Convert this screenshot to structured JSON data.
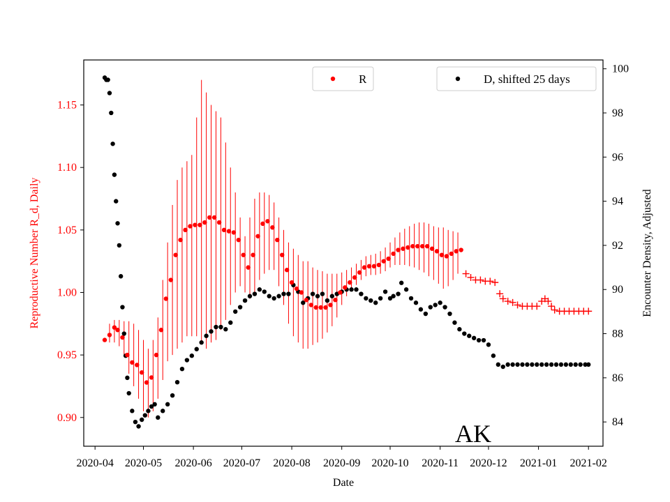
{
  "chart_data": {
    "type": "scatter",
    "state_label": "AK",
    "xlabel": "Date",
    "ylabel_left": "Reproductive Number R_d, Daily",
    "ylabel_right": "Encounter Density, Adjusted",
    "x_ticks": [
      "2020-04",
      "2020-05",
      "2020-06",
      "2020-07",
      "2020-08",
      "2020-09",
      "2020-10",
      "2020-11",
      "2020-12",
      "2021-01",
      "2021-02"
    ],
    "y_left_ticks": [
      "0.90",
      "0.95",
      "1.00",
      "1.05",
      "1.10",
      "1.15"
    ],
    "y_right_ticks": [
      "84",
      "86",
      "88",
      "90",
      "92",
      "94",
      "96",
      "98",
      "100"
    ],
    "xlim": [
      "2020-03-25",
      "2021-02-10"
    ],
    "ylim_left": [
      0.877,
      1.186
    ],
    "ylim_right": [
      82.9,
      100.4
    ],
    "grid": false,
    "colors": {
      "r_series": "#ff0000",
      "d_series": "#000000",
      "axis_left": "#ff0000"
    },
    "legend_r": {
      "label": "R",
      "placement": "top-center"
    },
    "legend_d": {
      "label": "D, shifted 25 days",
      "placement": "top-right"
    },
    "r_points": [
      [
        "2020-04-07",
        0.962
      ],
      [
        "2020-04-10",
        0.966
      ],
      [
        "2020-04-13",
        0.972
      ],
      [
        "2020-04-15",
        0.97
      ],
      [
        "2020-04-18",
        0.964
      ],
      [
        "2020-04-21",
        0.95
      ],
      [
        "2020-04-24",
        0.944
      ],
      [
        "2020-04-27",
        0.942
      ],
      [
        "2020-04-30",
        0.936
      ],
      [
        "2020-05-03",
        0.928
      ],
      [
        "2020-05-06",
        0.932
      ],
      [
        "2020-05-09",
        0.95
      ],
      [
        "2020-05-12",
        0.97
      ],
      [
        "2020-05-15",
        0.995
      ],
      [
        "2020-05-18",
        1.01
      ],
      [
        "2020-05-21",
        1.03
      ],
      [
        "2020-05-24",
        1.042
      ],
      [
        "2020-05-27",
        1.05
      ],
      [
        "2020-05-30",
        1.053
      ],
      [
        "2020-06-02",
        1.054
      ],
      [
        "2020-06-05",
        1.054
      ],
      [
        "2020-06-08",
        1.056
      ],
      [
        "2020-06-11",
        1.06
      ],
      [
        "2020-06-14",
        1.06
      ],
      [
        "2020-06-17",
        1.056
      ],
      [
        "2020-06-20",
        1.05
      ],
      [
        "2020-06-23",
        1.049
      ],
      [
        "2020-06-26",
        1.048
      ],
      [
        "2020-06-29",
        1.042
      ],
      [
        "2020-07-02",
        1.03
      ],
      [
        "2020-07-05",
        1.02
      ],
      [
        "2020-07-08",
        1.03
      ],
      [
        "2020-07-11",
        1.045
      ],
      [
        "2020-07-14",
        1.055
      ],
      [
        "2020-07-17",
        1.057
      ],
      [
        "2020-07-20",
        1.052
      ],
      [
        "2020-07-23",
        1.042
      ],
      [
        "2020-07-26",
        1.03
      ],
      [
        "2020-07-29",
        1.018
      ],
      [
        "2020-08-01",
        1.008
      ],
      [
        "2020-08-04",
        1.003
      ],
      [
        "2020-08-07",
        1.0
      ],
      [
        "2020-08-10",
        0.994
      ],
      [
        "2020-08-13",
        0.99
      ],
      [
        "2020-08-16",
        0.988
      ],
      [
        "2020-08-19",
        0.988
      ],
      [
        "2020-08-22",
        0.988
      ],
      [
        "2020-08-25",
        0.99
      ],
      [
        "2020-08-28",
        0.994
      ],
      [
        "2020-08-31",
        1.0
      ],
      [
        "2020-09-03",
        1.004
      ],
      [
        "2020-09-06",
        1.008
      ],
      [
        "2020-09-09",
        1.012
      ],
      [
        "2020-09-12",
        1.016
      ],
      [
        "2020-09-15",
        1.02
      ],
      [
        "2020-09-18",
        1.021
      ],
      [
        "2020-09-21",
        1.021
      ],
      [
        "2020-09-24",
        1.022
      ],
      [
        "2020-09-27",
        1.025
      ],
      [
        "2020-09-30",
        1.027
      ],
      [
        "2020-10-03",
        1.031
      ],
      [
        "2020-10-06",
        1.034
      ],
      [
        "2020-10-09",
        1.035
      ],
      [
        "2020-10-12",
        1.036
      ],
      [
        "2020-10-15",
        1.037
      ],
      [
        "2020-10-18",
        1.037
      ],
      [
        "2020-10-21",
        1.037
      ],
      [
        "2020-10-24",
        1.037
      ],
      [
        "2020-10-27",
        1.035
      ],
      [
        "2020-10-30",
        1.033
      ],
      [
        "2020-11-02",
        1.03
      ],
      [
        "2020-11-05",
        1.029
      ],
      [
        "2020-11-08",
        1.031
      ],
      [
        "2020-11-11",
        1.033
      ],
      [
        "2020-11-14",
        1.034
      ]
    ],
    "r_errorbars": [
      [
        "2020-04-10",
        0.96,
        0.975
      ],
      [
        "2020-04-13",
        0.96,
        0.978
      ],
      [
        "2020-04-16",
        0.957,
        0.978
      ],
      [
        "2020-04-19",
        0.95,
        0.977
      ],
      [
        "2020-04-22",
        0.935,
        0.977
      ],
      [
        "2020-04-25",
        0.925,
        0.975
      ],
      [
        "2020-04-28",
        0.915,
        0.97
      ],
      [
        "2020-05-01",
        0.905,
        0.962
      ],
      [
        "2020-05-04",
        0.9,
        0.955
      ],
      [
        "2020-05-07",
        0.905,
        0.962
      ],
      [
        "2020-05-10",
        0.915,
        0.98
      ],
      [
        "2020-05-13",
        0.93,
        1.01
      ],
      [
        "2020-05-16",
        0.945,
        1.04
      ],
      [
        "2020-05-19",
        0.95,
        1.07
      ],
      [
        "2020-05-22",
        0.955,
        1.09
      ],
      [
        "2020-05-25",
        0.96,
        1.1
      ],
      [
        "2020-05-28",
        0.965,
        1.105
      ],
      [
        "2020-05-31",
        0.965,
        1.11
      ],
      [
        "2020-06-03",
        0.965,
        1.14
      ],
      [
        "2020-06-06",
        0.96,
        1.17
      ],
      [
        "2020-06-09",
        0.955,
        1.16
      ],
      [
        "2020-06-12",
        0.96,
        1.15
      ],
      [
        "2020-06-15",
        0.962,
        1.145
      ],
      [
        "2020-06-18",
        0.97,
        1.14
      ],
      [
        "2020-06-21",
        0.978,
        1.12
      ],
      [
        "2020-06-24",
        0.99,
        1.1
      ],
      [
        "2020-06-27",
        1.0,
        1.08
      ],
      [
        "2020-06-30",
        1.005,
        1.06
      ],
      [
        "2020-07-03",
        1.0,
        1.045
      ],
      [
        "2020-07-06",
        0.995,
        1.06
      ],
      [
        "2020-07-09",
        1.0,
        1.075
      ],
      [
        "2020-07-12",
        1.01,
        1.08
      ],
      [
        "2020-07-15",
        1.015,
        1.08
      ],
      [
        "2020-07-18",
        1.018,
        1.078
      ],
      [
        "2020-07-21",
        1.018,
        1.072
      ],
      [
        "2020-07-24",
        1.005,
        1.06
      ],
      [
        "2020-07-27",
        0.99,
        1.05
      ],
      [
        "2020-07-30",
        0.975,
        1.04
      ],
      [
        "2020-08-02",
        0.965,
        1.035
      ],
      [
        "2020-08-05",
        0.96,
        1.03
      ],
      [
        "2020-08-08",
        0.955,
        1.025
      ],
      [
        "2020-08-11",
        0.955,
        1.025
      ],
      [
        "2020-08-14",
        0.958,
        1.02
      ],
      [
        "2020-08-17",
        0.96,
        1.018
      ],
      [
        "2020-08-20",
        0.963,
        1.017
      ],
      [
        "2020-08-23",
        0.968,
        1.015
      ],
      [
        "2020-08-26",
        0.973,
        1.015
      ],
      [
        "2020-08-29",
        0.98,
        1.015
      ],
      [
        "2020-09-01",
        0.99,
        1.016
      ],
      [
        "2020-09-04",
        0.997,
        1.018
      ],
      [
        "2020-09-07",
        1.002,
        1.02
      ],
      [
        "2020-09-10",
        1.006,
        1.023
      ],
      [
        "2020-09-13",
        1.01,
        1.026
      ],
      [
        "2020-09-16",
        1.013,
        1.029
      ],
      [
        "2020-09-19",
        1.014,
        1.03
      ],
      [
        "2020-09-22",
        1.014,
        1.031
      ],
      [
        "2020-09-25",
        1.015,
        1.033
      ],
      [
        "2020-09-28",
        1.017,
        1.036
      ],
      [
        "2020-10-01",
        1.02,
        1.04
      ],
      [
        "2020-10-04",
        1.022,
        1.044
      ],
      [
        "2020-10-07",
        1.022,
        1.048
      ],
      [
        "2020-10-10",
        1.022,
        1.051
      ],
      [
        "2020-10-13",
        1.021,
        1.053
      ],
      [
        "2020-10-16",
        1.02,
        1.055
      ],
      [
        "2020-10-19",
        1.018,
        1.056
      ],
      [
        "2020-10-22",
        1.016,
        1.056
      ],
      [
        "2020-10-25",
        1.013,
        1.055
      ],
      [
        "2020-10-28",
        1.01,
        1.053
      ],
      [
        "2020-10-31",
        1.007,
        1.052
      ],
      [
        "2020-11-03",
        1.003,
        1.052
      ],
      [
        "2020-11-06",
        1.005,
        1.05
      ],
      [
        "2020-11-09",
        1.01,
        1.049
      ],
      [
        "2020-11-12",
        1.015,
        1.048
      ]
    ],
    "r_forecast": [
      [
        "2020-11-17",
        1.015
      ],
      [
        "2020-11-20",
        1.012
      ],
      [
        "2020-11-23",
        1.01
      ],
      [
        "2020-11-26",
        1.01
      ],
      [
        "2020-11-29",
        1.009
      ],
      [
        "2020-12-02",
        1.009
      ],
      [
        "2020-12-05",
        1.008
      ],
      [
        "2020-12-08",
        0.999
      ],
      [
        "2020-12-10",
        0.995
      ],
      [
        "2020-12-13",
        0.993
      ],
      [
        "2020-12-16",
        0.992
      ],
      [
        "2020-12-19",
        0.99
      ],
      [
        "2020-12-22",
        0.989
      ],
      [
        "2020-12-25",
        0.989
      ],
      [
        "2020-12-28",
        0.989
      ],
      [
        "2020-12-31",
        0.989
      ],
      [
        "2021-01-03",
        0.993
      ],
      [
        "2021-01-05",
        0.995
      ],
      [
        "2021-01-07",
        0.993
      ],
      [
        "2021-01-09",
        0.989
      ],
      [
        "2021-01-11",
        0.986
      ],
      [
        "2021-01-14",
        0.985
      ],
      [
        "2021-01-17",
        0.985
      ],
      [
        "2021-01-20",
        0.985
      ],
      [
        "2021-01-23",
        0.985
      ],
      [
        "2021-01-26",
        0.985
      ],
      [
        "2021-01-29",
        0.985
      ],
      [
        "2021-02-01",
        0.985
      ]
    ],
    "d_points": [
      [
        "2020-04-07",
        99.6
      ],
      [
        "2020-04-08",
        99.5
      ],
      [
        "2020-04-09",
        99.5
      ],
      [
        "2020-04-10",
        98.9
      ],
      [
        "2020-04-11",
        98.0
      ],
      [
        "2020-04-12",
        96.6
      ],
      [
        "2020-04-13",
        95.2
      ],
      [
        "2020-04-14",
        94.0
      ],
      [
        "2020-04-15",
        93.0
      ],
      [
        "2020-04-16",
        92.0
      ],
      [
        "2020-04-17",
        90.6
      ],
      [
        "2020-04-18",
        89.2
      ],
      [
        "2020-04-19",
        88.0
      ],
      [
        "2020-04-20",
        87.0
      ],
      [
        "2020-04-21",
        86.0
      ],
      [
        "2020-04-22",
        85.3
      ],
      [
        "2020-04-24",
        84.5
      ],
      [
        "2020-04-26",
        84.0
      ],
      [
        "2020-04-28",
        83.8
      ],
      [
        "2020-04-30",
        84.1
      ],
      [
        "2020-05-02",
        84.3
      ],
      [
        "2020-05-04",
        84.5
      ],
      [
        "2020-05-06",
        84.7
      ],
      [
        "2020-05-08",
        84.8
      ],
      [
        "2020-05-10",
        84.2
      ],
      [
        "2020-05-13",
        84.5
      ],
      [
        "2020-05-16",
        84.8
      ],
      [
        "2020-05-19",
        85.2
      ],
      [
        "2020-05-22",
        85.8
      ],
      [
        "2020-05-25",
        86.4
      ],
      [
        "2020-05-28",
        86.8
      ],
      [
        "2020-05-31",
        87.0
      ],
      [
        "2020-06-03",
        87.3
      ],
      [
        "2020-06-06",
        87.6
      ],
      [
        "2020-06-09",
        87.9
      ],
      [
        "2020-06-12",
        88.1
      ],
      [
        "2020-06-15",
        88.3
      ],
      [
        "2020-06-18",
        88.3
      ],
      [
        "2020-06-21",
        88.2
      ],
      [
        "2020-06-24",
        88.5
      ],
      [
        "2020-06-27",
        89.0
      ],
      [
        "2020-06-30",
        89.2
      ],
      [
        "2020-07-03",
        89.5
      ],
      [
        "2020-07-06",
        89.7
      ],
      [
        "2020-07-09",
        89.8
      ],
      [
        "2020-07-12",
        90.0
      ],
      [
        "2020-07-15",
        89.9
      ],
      [
        "2020-07-18",
        89.7
      ],
      [
        "2020-07-21",
        89.6
      ],
      [
        "2020-07-24",
        89.7
      ],
      [
        "2020-07-27",
        89.8
      ],
      [
        "2020-07-30",
        89.8
      ],
      [
        "2020-08-02",
        90.2
      ],
      [
        "2020-08-05",
        89.9
      ],
      [
        "2020-08-08",
        89.4
      ],
      [
        "2020-08-11",
        89.6
      ],
      [
        "2020-08-14",
        89.8
      ],
      [
        "2020-08-17",
        89.7
      ],
      [
        "2020-08-20",
        89.8
      ],
      [
        "2020-08-23",
        89.5
      ],
      [
        "2020-08-26",
        89.7
      ],
      [
        "2020-08-29",
        89.8
      ],
      [
        "2020-09-01",
        89.9
      ],
      [
        "2020-09-04",
        90.0
      ],
      [
        "2020-09-07",
        90.0
      ],
      [
        "2020-09-10",
        90.0
      ],
      [
        "2020-09-13",
        89.8
      ],
      [
        "2020-09-16",
        89.6
      ],
      [
        "2020-09-19",
        89.5
      ],
      [
        "2020-09-22",
        89.4
      ],
      [
        "2020-09-25",
        89.6
      ],
      [
        "2020-09-28",
        89.9
      ],
      [
        "2020-10-01",
        89.6
      ],
      [
        "2020-10-03",
        89.7
      ],
      [
        "2020-10-06",
        89.8
      ],
      [
        "2020-10-08",
        90.3
      ],
      [
        "2020-10-11",
        90.0
      ],
      [
        "2020-10-14",
        89.6
      ],
      [
        "2020-10-17",
        89.4
      ],
      [
        "2020-10-20",
        89.1
      ],
      [
        "2020-10-23",
        88.9
      ],
      [
        "2020-10-26",
        89.2
      ],
      [
        "2020-10-29",
        89.3
      ],
      [
        "2020-11-01",
        89.4
      ],
      [
        "2020-11-04",
        89.2
      ],
      [
        "2020-11-07",
        88.9
      ],
      [
        "2020-11-10",
        88.5
      ],
      [
        "2020-11-13",
        88.2
      ],
      [
        "2020-11-16",
        88.0
      ],
      [
        "2020-11-19",
        87.9
      ],
      [
        "2020-11-22",
        87.8
      ],
      [
        "2020-11-25",
        87.7
      ],
      [
        "2020-11-28",
        87.7
      ],
      [
        "2020-12-01",
        87.5
      ],
      [
        "2020-12-04",
        87.0
      ],
      [
        "2020-12-07",
        86.6
      ],
      [
        "2020-12-10",
        86.5
      ],
      [
        "2020-12-13",
        86.6
      ],
      [
        "2020-12-16",
        86.6
      ],
      [
        "2020-12-19",
        86.6
      ],
      [
        "2020-12-22",
        86.6
      ],
      [
        "2020-12-25",
        86.6
      ],
      [
        "2020-12-28",
        86.6
      ],
      [
        "2020-12-31",
        86.6
      ],
      [
        "2021-01-03",
        86.6
      ],
      [
        "2021-01-06",
        86.6
      ],
      [
        "2021-01-09",
        86.6
      ],
      [
        "2021-01-12",
        86.6
      ],
      [
        "2021-01-15",
        86.6
      ],
      [
        "2021-01-18",
        86.6
      ],
      [
        "2021-01-21",
        86.6
      ],
      [
        "2021-01-24",
        86.6
      ],
      [
        "2021-01-27",
        86.6
      ],
      [
        "2021-01-30",
        86.6
      ],
      [
        "2021-02-01",
        86.6
      ]
    ]
  }
}
